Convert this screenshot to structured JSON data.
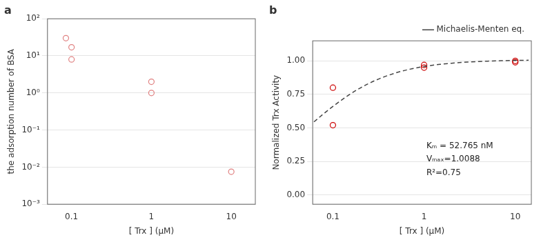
{
  "chart_data": [
    {
      "type": "scatter",
      "title": "a",
      "x_label": "[ Trx ] (μM)",
      "y_label": "the adsorption number of BSA",
      "log": true,
      "xlim": [
        0.05,
        20
      ],
      "ylim": [
        0.001,
        100
      ],
      "xticks": [
        0.1,
        1,
        10
      ],
      "yticks": [
        {
          "value": 0.001,
          "label": "10⁻³"
        },
        {
          "value": 0.01,
          "label": "10⁻²"
        },
        {
          "value": 0.1,
          "label": "10⁻¹"
        },
        {
          "value": 1,
          "label": "10⁰"
        },
        {
          "value": 10,
          "label": "10¹"
        },
        {
          "value": 100,
          "label": "10²"
        }
      ],
      "grid": true,
      "series": [
        {
          "type": "scatter",
          "marker": "circle",
          "color": "#e08080",
          "x": [
            0.085,
            0.1,
            0.1,
            1.0,
            1.0,
            10.0
          ],
          "values": [
            30,
            17,
            8,
            2,
            1.0,
            0.0075
          ]
        }
      ]
    },
    {
      "type": "scatter",
      "title": "b",
      "x_label": "[ Trx ] (μM)",
      "y_label": "Normalized Trx Activity",
      "log": "x",
      "xlim": [
        0.06,
        15
      ],
      "ylim": [
        -0.07,
        1.15
      ],
      "xticks": [
        0.1,
        1,
        10
      ],
      "yticks": [
        {
          "value": 0,
          "label": "0.00"
        },
        0.25,
        {
          "value": 0.5,
          "label": "0.50"
        },
        0.75,
        {
          "value": 1,
          "label": "1.00"
        }
      ],
      "grid": true,
      "legend": "upper right",
      "annotations": [
        "Kₘ = 52.765 nM",
        "Vₘₐₓ=1.0088",
        "R²=0.75"
      ],
      "series": [
        {
          "name": "Michaelis-Menten eq.",
          "type": "line",
          "line_style": "dashed",
          "color": "#444444",
          "x": [
            0.062,
            0.08,
            0.1,
            0.15,
            0.2,
            0.3,
            0.5,
            0.7,
            1,
            1.5,
            2,
            3,
            5,
            7,
            10,
            14
          ],
          "values": [
            0.54499,
            0.60787,
            0.66036,
            0.74628,
            0.79821,
            0.85791,
            0.9125,
            0.93809,
            0.95824,
            0.97452,
            0.98287,
            0.99136,
            0.99827,
            1.00125,
            1.0035,
            1.00501
          ]
        },
        {
          "type": "scatter",
          "marker": "circle",
          "color": "#cc0000",
          "x": [
            0.1,
            0.1,
            1.0,
            1.0,
            10.0,
            10.0
          ],
          "values": [
            0.52,
            0.8,
            0.95,
            0.97,
            0.99,
            1.0
          ]
        }
      ]
    }
  ]
}
